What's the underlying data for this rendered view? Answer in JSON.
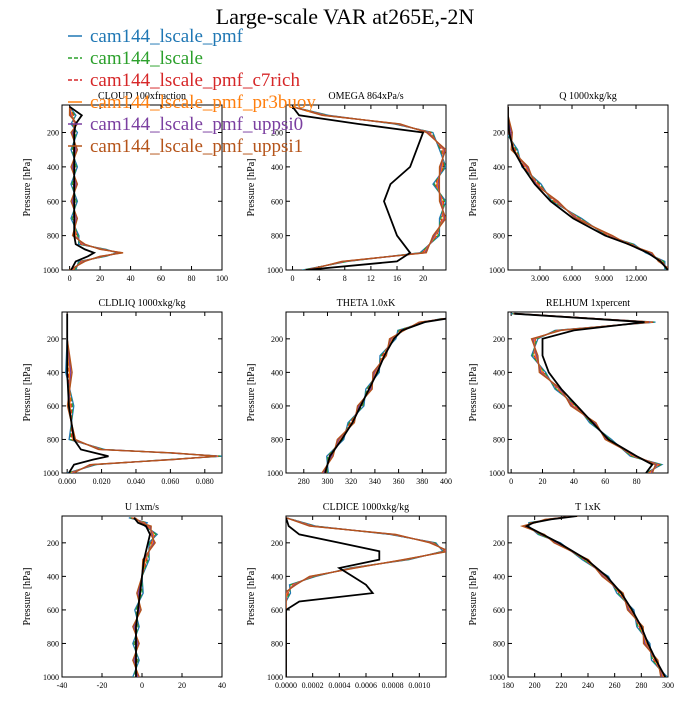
{
  "figure": {
    "title": "Large-scale VAR at265E,-2N"
  },
  "legend": {
    "entries": [
      {
        "label": "cam144_lscale_pmf",
        "color": "#1f77b4",
        "dash": "solid"
      },
      {
        "label": "cam144_lscale",
        "color": "#2ca02c",
        "dash": "dashed"
      },
      {
        "label": "cam144_lscale_pmf_c7rich",
        "color": "#d62728",
        "dash": "dashed"
      },
      {
        "label": "cam144_lscale_pmf_pr3buoy",
        "color": "#ff7f0e",
        "dash": "solid"
      },
      {
        "label": "cam144_lscale_pmf_uppsi0",
        "color": "#7b3fa0",
        "dash": "solid"
      },
      {
        "label": "cam144_lscale_pmf_uppsi1",
        "color": "#b5541a",
        "dash": "solid"
      }
    ],
    "obs_color": "#000000"
  },
  "chart_data": [
    {
      "type": "line",
      "title": "CLOUD 100xfraction",
      "xlabel": "",
      "ylabel": "Pressure [hPa]",
      "xlim": [
        -5,
        100
      ],
      "ylim": [
        1000,
        40
      ],
      "xticks": [
        {
          "v": 0,
          "l": "0"
        },
        {
          "v": 20,
          "l": "20"
        },
        {
          "v": 40,
          "l": "40"
        },
        {
          "v": 60,
          "l": "60"
        },
        {
          "v": 80,
          "l": "80"
        },
        {
          "v": 100,
          "l": "100"
        }
      ],
      "yticks": [
        200,
        400,
        600,
        800,
        1000
      ],
      "y": [
        50,
        100,
        150,
        200,
        300,
        400,
        500,
        600,
        700,
        800,
        850,
        880,
        900,
        920,
        950,
        1000
      ],
      "model": [
        0,
        2,
        3,
        3,
        3,
        3,
        3,
        3,
        3,
        4,
        8,
        22,
        33,
        22,
        8,
        2
      ],
      "obs": [
        0,
        8,
        4,
        3,
        3,
        3,
        3,
        3,
        3,
        3,
        4,
        10,
        16,
        12,
        4,
        1
      ]
    },
    {
      "type": "line",
      "title": "OMEGA 864xPa/s",
      "xlabel": "",
      "ylabel": "Pressure [hPa]",
      "xlim": [
        -1,
        23.5
      ],
      "ylim": [
        1000,
        40
      ],
      "xticks": [
        {
          "v": 0,
          "l": "0"
        },
        {
          "v": 4,
          "l": "4"
        },
        {
          "v": 8,
          "l": "8"
        },
        {
          "v": 12,
          "l": "12"
        },
        {
          "v": 16,
          "l": "16"
        },
        {
          "v": 20,
          "l": "20"
        }
      ],
      "yticks": [
        200,
        400,
        600,
        800,
        1000
      ],
      "y": [
        50,
        100,
        150,
        200,
        300,
        400,
        500,
        600,
        700,
        800,
        900,
        950,
        1000
      ],
      "model": [
        0,
        5,
        16,
        21,
        23,
        23,
        22,
        23,
        23,
        22,
        20,
        8,
        2
      ],
      "obs": [
        0,
        1,
        10,
        20,
        19,
        18,
        15,
        14,
        15,
        16,
        18,
        16,
        2
      ]
    },
    {
      "type": "line",
      "title": "Q 1000xkg/kg",
      "xlabel": "",
      "ylabel": "Pressure [hPa]",
      "xlim": [
        0,
        15
      ],
      "ylim": [
        1000,
        40
      ],
      "xticks": [
        {
          "v": 3,
          "l": "3.000"
        },
        {
          "v": 6,
          "l": "6.000"
        },
        {
          "v": 9,
          "l": "9.000"
        },
        {
          "v": 12,
          "l": "12.000"
        }
      ],
      "yticks": [
        200,
        400,
        600,
        800,
        1000
      ],
      "y": [
        50,
        100,
        200,
        300,
        400,
        500,
        600,
        700,
        800,
        850,
        900,
        950,
        1000
      ],
      "model": [
        0,
        0,
        0.1,
        0.6,
        1.6,
        2.8,
        4.4,
        6.6,
        9.5,
        11.5,
        13.2,
        14.4,
        15
      ],
      "obs": [
        0,
        0,
        0.1,
        0.5,
        1.4,
        2.5,
        4,
        6.1,
        9.1,
        11.3,
        13.1,
        14.3,
        15
      ]
    },
    {
      "type": "line",
      "title": "CLDLIQ 1000xkg/kg",
      "xlabel": "",
      "ylabel": "Pressure [hPa]",
      "xlim": [
        -0.003,
        0.09
      ],
      "ylim": [
        1000,
        40
      ],
      "xticks": [
        {
          "v": 0,
          "l": "0.000"
        },
        {
          "v": 0.02,
          "l": "0.020"
        },
        {
          "v": 0.04,
          "l": "0.040"
        },
        {
          "v": 0.06,
          "l": "0.060"
        },
        {
          "v": 0.08,
          "l": "0.080"
        }
      ],
      "yticks": [
        200,
        400,
        600,
        800,
        1000
      ],
      "y": [
        50,
        200,
        400,
        600,
        800,
        860,
        880,
        900,
        920,
        950,
        1000
      ],
      "model": [
        0,
        0,
        0.001,
        0.002,
        0.003,
        0.02,
        0.06,
        0.088,
        0.06,
        0.015,
        0.002
      ],
      "obs": [
        0,
        0,
        0,
        0.001,
        0.004,
        0.008,
        0.016,
        0.024,
        0.015,
        0.004,
        0.001
      ]
    },
    {
      "type": "line",
      "title": "THETA 1.0xK",
      "xlabel": "",
      "ylabel": "Pressure [hPa]",
      "xlim": [
        265,
        400
      ],
      "ylim": [
        1000,
        40
      ],
      "xticks": [
        {
          "v": 280,
          "l": "280"
        },
        {
          "v": 300,
          "l": "300"
        },
        {
          "v": 320,
          "l": "320"
        },
        {
          "v": 340,
          "l": "340"
        },
        {
          "v": 360,
          "l": "360"
        },
        {
          "v": 380,
          "l": "380"
        },
        {
          "v": 400,
          "l": "400"
        }
      ],
      "yticks": [
        200,
        400,
        600,
        800,
        1000
      ],
      "y": [
        80,
        100,
        150,
        200,
        300,
        400,
        500,
        600,
        700,
        800,
        900,
        1000
      ],
      "model": [
        398,
        380,
        362,
        355,
        347,
        341,
        335,
        328,
        320,
        311,
        302,
        298
      ],
      "obs": [
        400,
        382,
        363,
        356,
        348,
        342,
        335,
        328,
        321,
        312,
        302,
        298
      ]
    },
    {
      "type": "line",
      "title": "RELHUM 1xpercent",
      "xlabel": "",
      "ylabel": "Pressure [hPa]",
      "xlim": [
        -2,
        100
      ],
      "ylim": [
        1000,
        40
      ],
      "xticks": [
        {
          "v": 0,
          "l": "0"
        },
        {
          "v": 20,
          "l": "20"
        },
        {
          "v": 40,
          "l": "40"
        },
        {
          "v": 60,
          "l": "60"
        },
        {
          "v": 80,
          "l": "80"
        }
      ],
      "yticks": [
        200,
        400,
        600,
        800,
        1000
      ],
      "y": [
        50,
        100,
        150,
        200,
        300,
        400,
        500,
        600,
        700,
        800,
        900,
        950,
        1000
      ],
      "model": [
        2,
        90,
        30,
        15,
        15,
        20,
        30,
        40,
        52,
        62,
        78,
        94,
        88
      ],
      "obs": [
        2,
        85,
        40,
        20,
        20,
        24,
        32,
        42,
        52,
        62,
        80,
        90,
        86
      ]
    },
    {
      "type": "line",
      "title": "U 1xm/s",
      "xlabel": "",
      "ylabel": "Pressure [hPa]",
      "xlim": [
        -40,
        40
      ],
      "ylim": [
        1000,
        40
      ],
      "xticks": [
        {
          "v": -40,
          "l": "-40"
        },
        {
          "v": -20,
          "l": "-20"
        },
        {
          "v": 0,
          "l": "0"
        },
        {
          "v": 20,
          "l": "20"
        },
        {
          "v": 40,
          "l": "40"
        }
      ],
      "yticks": [
        200,
        400,
        600,
        800,
        1000
      ],
      "y": [
        50,
        80,
        100,
        150,
        200,
        300,
        400,
        500,
        600,
        700,
        800,
        900,
        1000
      ],
      "model": [
        -5,
        1,
        3,
        6,
        5,
        2,
        0,
        -1,
        -2,
        -3,
        -3,
        -3,
        -3
      ],
      "obs": [
        -4,
        -2,
        2,
        4,
        3,
        1,
        0,
        -1,
        -2,
        -3,
        -3,
        -3,
        -3
      ]
    },
    {
      "type": "line",
      "title": "CLDICE 1000xkg/kg",
      "xlabel": "",
      "ylabel": "Pressure [hPa]",
      "xlim": [
        0,
        0.0012
      ],
      "ylim": [
        1000,
        40
      ],
      "xticks": [
        {
          "v": 0,
          "l": "0.0000"
        },
        {
          "v": 0.0002,
          "l": "0.0002"
        },
        {
          "v": 0.0004,
          "l": "0.0004"
        },
        {
          "v": 0.0006,
          "l": "0.0006"
        },
        {
          "v": 0.0008,
          "l": "0.0008"
        },
        {
          "v": 0.001,
          "l": "0.0010"
        }
      ],
      "yticks": [
        200,
        400,
        600,
        800,
        1000
      ],
      "y": [
        50,
        100,
        150,
        200,
        250,
        300,
        350,
        400,
        450,
        500,
        550,
        600,
        700,
        1000
      ],
      "model": [
        0,
        0.0002,
        0.0008,
        0.0011,
        0.0012,
        0.0009,
        0.0005,
        0.0002,
        5e-05,
        1e-05,
        0,
        0,
        0,
        0
      ],
      "obs": [
        0,
        2e-05,
        0.0001,
        0.0004,
        0.0007,
        0.0007,
        0.0004,
        0.0005,
        0.0006,
        0.00065,
        0.0001,
        0,
        0,
        0
      ]
    },
    {
      "type": "line",
      "title": "T 1xK",
      "xlabel": "",
      "ylabel": "Pressure [hPa]",
      "xlim": [
        180,
        300
      ],
      "ylim": [
        1000,
        40
      ],
      "xticks": [
        {
          "v": 180,
          "l": "180"
        },
        {
          "v": 200,
          "l": "200"
        },
        {
          "v": 220,
          "l": "220"
        },
        {
          "v": 240,
          "l": "240"
        },
        {
          "v": 260,
          "l": "260"
        },
        {
          "v": 280,
          "l": "280"
        },
        {
          "v": 300,
          "l": "300"
        }
      ],
      "yticks": [
        200,
        400,
        600,
        800,
        1000
      ],
      "y": [
        40,
        60,
        80,
        100,
        150,
        200,
        300,
        400,
        500,
        600,
        700,
        800,
        900,
        1000
      ],
      "model": [
        230,
        210,
        198,
        193,
        205,
        217,
        238,
        253,
        264,
        272,
        279,
        284,
        290,
        297
      ],
      "obs": [
        232,
        212,
        199,
        194,
        206,
        218,
        239,
        254,
        265,
        273,
        280,
        285,
        291,
        298
      ]
    }
  ]
}
